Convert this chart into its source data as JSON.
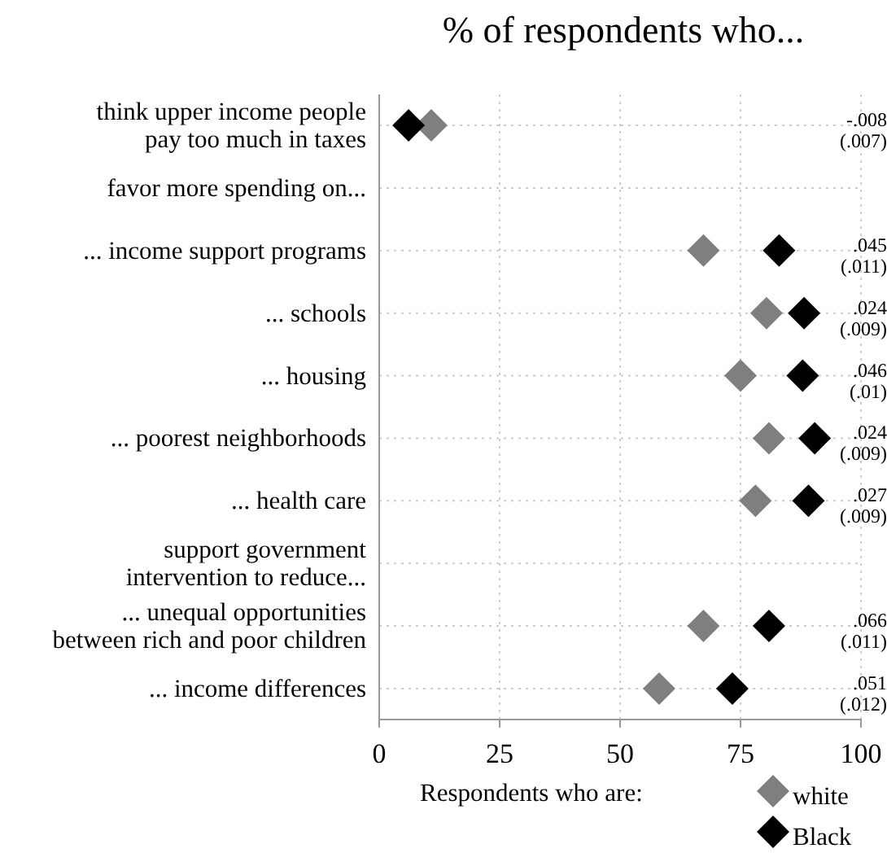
{
  "chart_data": {
    "type": "scatter",
    "title": "% of respondents who...",
    "orientation": "horizontal",
    "categories": [
      "think upper income people\npay too much in taxes",
      "favor more spending on...",
      "... income support programs",
      "... schools",
      "... housing",
      "... poorest neighborhoods",
      "... health care",
      "support government\nintervention to reduce...",
      "... unequal opportunities\nbetween rich and poor children",
      "... income differences"
    ],
    "series": [
      {
        "name": "white",
        "color": "#7f7f7f",
        "values": [
          10.8,
          null,
          67.3,
          80.4,
          75,
          80.9,
          78.1,
          null,
          67.3,
          58.1
        ]
      },
      {
        "name": "Black",
        "color": "#000000",
        "values": [
          6.1,
          null,
          83,
          88.2,
          87.9,
          90.4,
          89.1,
          null,
          80.9,
          73.3
        ]
      }
    ],
    "xlim": [
      0,
      100
    ],
    "xticks": [
      0,
      25,
      50,
      75,
      100
    ],
    "grid": true,
    "marker": "diamond",
    "legend": "bottom",
    "legend_title": "Respondents who are:",
    "annotations": [
      "-.008\n(.007)",
      ".045\n(.011)",
      ".024\n(.009)",
      ".046\n(.01)",
      ".024\n(.009)",
      ".027\n(.009)",
      ".066\n(.011)",
      ".051\n(.012)"
    ]
  }
}
